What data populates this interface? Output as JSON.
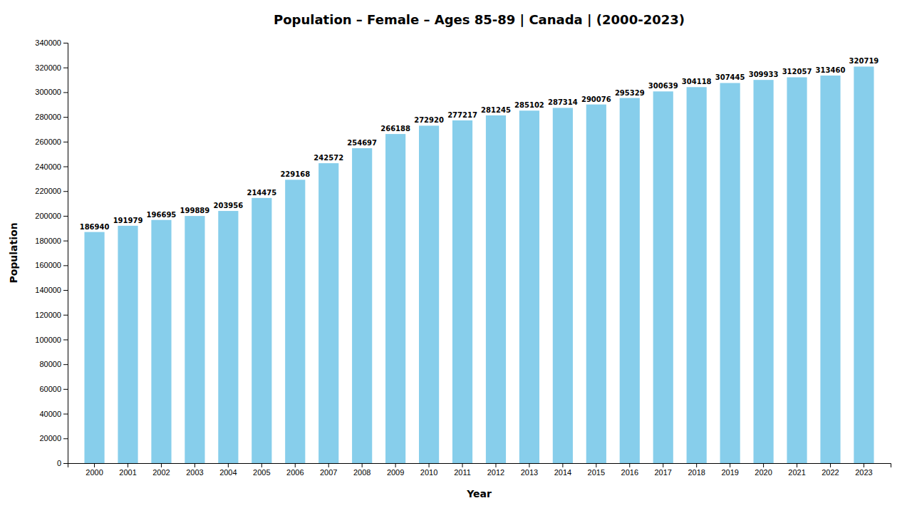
{
  "chart_data": {
    "type": "bar",
    "title": "Population – Female – Ages 85-89 | Canada |  (2000-2023)",
    "x_label": "Year",
    "y_label": "Population",
    "categories": [
      "2000",
      "2001",
      "2002",
      "2003",
      "2004",
      "2005",
      "2006",
      "2007",
      "2008",
      "2009",
      "2010",
      "2011",
      "2012",
      "2013",
      "2014",
      "2015",
      "2016",
      "2017",
      "2018",
      "2019",
      "2020",
      "2021",
      "2022",
      "2023"
    ],
    "values": [
      186940,
      191979,
      196695,
      199889,
      203956,
      214475,
      229168,
      242572,
      254697,
      266188,
      272920,
      277217,
      281245,
      285102,
      287314,
      290076,
      295329,
      300639,
      304118,
      307445,
      309933,
      312057,
      313460,
      320719
    ],
    "color": "#87CEEB",
    "ylim": [
      0,
      340000
    ],
    "yticks": [
      0,
      20000,
      40000,
      60000,
      80000,
      100000,
      120000,
      140000,
      160000,
      180000,
      200000,
      220000,
      240000,
      260000,
      280000,
      300000,
      320000,
      340000
    ],
    "grid": false,
    "data_labels": true
  }
}
